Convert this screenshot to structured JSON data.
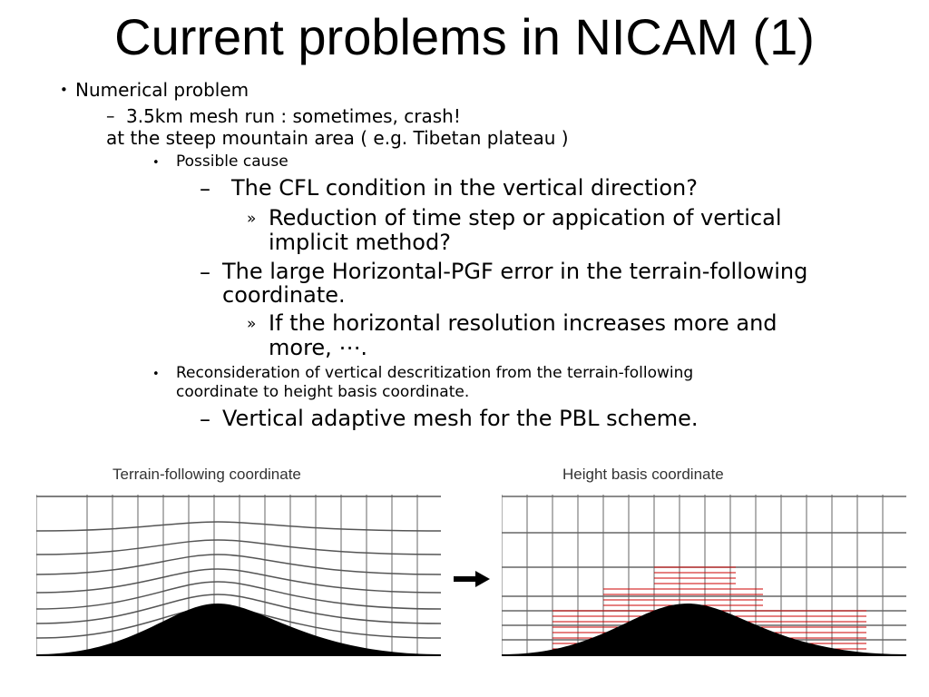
{
  "slide": {
    "title": "Current problems in NICAM (1)"
  },
  "outline": {
    "l1_bullet": "•",
    "l1_text": "Numerical problem",
    "l2_dash": "–",
    "l2_text_a": "3.5km mesh run : sometimes, crash!",
    "l2_text_b": "at the steep mountain area ( e.g. Tibetan plateau )",
    "l3_bullet": "•",
    "l3_cause": "Possible cause",
    "cfl_dash": "–",
    "cfl_text": "The CFL condition in the vertical direction?",
    "r1_mark": "»",
    "r1_text_a": "Reduction of time step or appication of vertical",
    "r1_text_b": "implicit method?",
    "pgf_dash": "–",
    "pgf_text_a": "The large Horizontal-PGF error in the terrain-following",
    "pgf_text_b": "coordinate.",
    "r2_mark": "»",
    "r2_text_a": "If the horizontal resolution increases more and",
    "r2_text_b": "more, ⋯.",
    "l3b_bullet": "•",
    "recon_text_a": "Reconsideration of vertical descritization from the terrain-following",
    "recon_text_b": "coordinate to height basis coordinate.",
    "mesh_dash": "–",
    "mesh_text": "Vertical adaptive mesh for the PBL scheme."
  },
  "figure": {
    "left_label": "Terrain-following coordinate",
    "right_label": "Height basis coordinate",
    "arrow_icon": "right-arrow-icon",
    "colors": {
      "grid": "#888888",
      "terrain": "#000000",
      "adaptive_mesh": "#cc0000"
    }
  }
}
